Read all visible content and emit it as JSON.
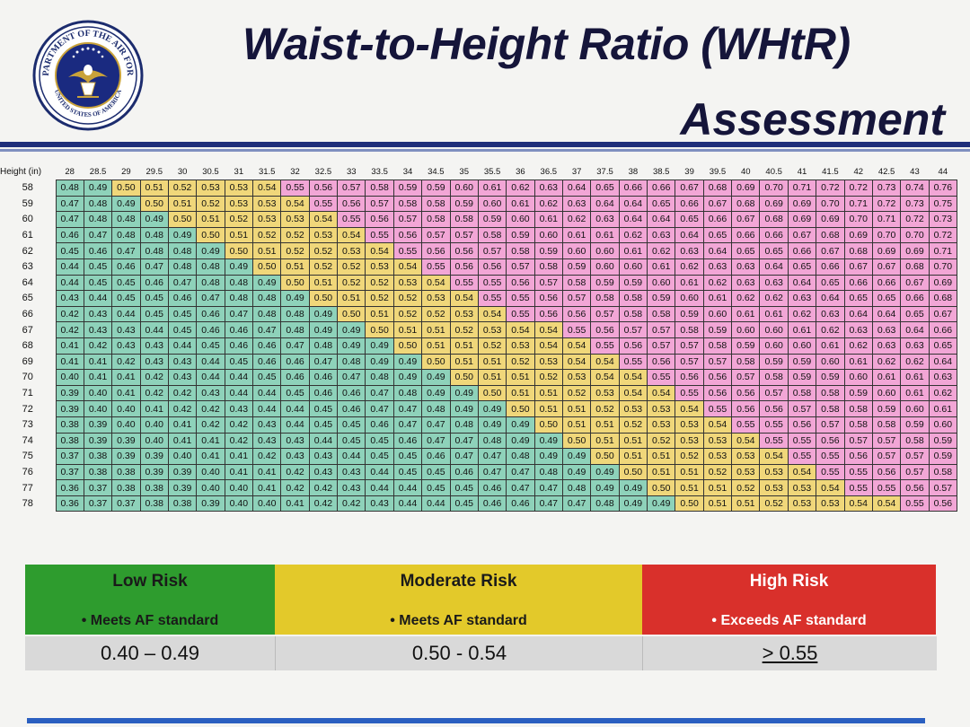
{
  "title": {
    "line1": "Waist-to-Height Ratio (WHtR)",
    "line2": "Assessment"
  },
  "seal": {
    "text_top": "DEPARTMENT OF THE AIR FORCE",
    "text_bottom": "UNITED STATES OF AMERICA",
    "colors": {
      "ring": "#1c2c6e",
      "inner": "#1a2a80",
      "gold": "#c9a23a"
    }
  },
  "table": {
    "corner_label": "Height (in)",
    "waist_columns": [
      "28",
      "28.5",
      "29",
      "29.5",
      "30",
      "30.5",
      "31",
      "31.5",
      "32",
      "32.5",
      "33",
      "33.5",
      "34",
      "34.5",
      "35",
      "35.5",
      "36",
      "36.5",
      "37",
      "37.5",
      "38",
      "38.5",
      "39",
      "39.5",
      "40",
      "40.5",
      "41",
      "41.5",
      "42",
      "42.5",
      "43",
      "44"
    ],
    "rows": [
      {
        "height": "58",
        "values": [
          "0.48",
          "0.49",
          "0.50",
          "0.51",
          "0.52",
          "0.53",
          "0.53",
          "0.54",
          "0.55",
          "0.56",
          "0.57",
          "0.58",
          "0.59",
          "0.59",
          "0.60",
          "0.61",
          "0.62",
          "0.63",
          "0.64",
          "0.65",
          "0.66",
          "0.66",
          "0.67",
          "0.68",
          "0.69",
          "0.70",
          "0.71",
          "0.72",
          "0.72",
          "0.73",
          "0.74",
          "0.76"
        ]
      },
      {
        "height": "59",
        "values": [
          "0.47",
          "0.48",
          "0.49",
          "0.50",
          "0.51",
          "0.52",
          "0.53",
          "0.53",
          "0.54",
          "0.55",
          "0.56",
          "0.57",
          "0.58",
          "0.58",
          "0.59",
          "0.60",
          "0.61",
          "0.62",
          "0.63",
          "0.64",
          "0.64",
          "0.65",
          "0.66",
          "0.67",
          "0.68",
          "0.69",
          "0.69",
          "0.70",
          "0.71",
          "0.72",
          "0.73",
          "0.75"
        ]
      },
      {
        "height": "60",
        "values": [
          "0.47",
          "0.48",
          "0.48",
          "0.49",
          "0.50",
          "0.51",
          "0.52",
          "0.53",
          "0.53",
          "0.54",
          "0.55",
          "0.56",
          "0.57",
          "0.58",
          "0.58",
          "0.59",
          "0.60",
          "0.61",
          "0.62",
          "0.63",
          "0.64",
          "0.64",
          "0.65",
          "0.66",
          "0.67",
          "0.68",
          "0.69",
          "0.69",
          "0.70",
          "0.71",
          "0.72",
          "0.73"
        ]
      },
      {
        "height": "61",
        "values": [
          "0.46",
          "0.47",
          "0.48",
          "0.48",
          "0.49",
          "0.50",
          "0.51",
          "0.52",
          "0.52",
          "0.53",
          "0.54",
          "0.55",
          "0.56",
          "0.57",
          "0.57",
          "0.58",
          "0.59",
          "0.60",
          "0.61",
          "0.61",
          "0.62",
          "0.63",
          "0.64",
          "0.65",
          "0.66",
          "0.66",
          "0.67",
          "0.68",
          "0.69",
          "0.70",
          "0.70",
          "0.72"
        ]
      },
      {
        "height": "62",
        "values": [
          "0.45",
          "0.46",
          "0.47",
          "0.48",
          "0.48",
          "0.49",
          "0.50",
          "0.51",
          "0.52",
          "0.52",
          "0.53",
          "0.54",
          "0.55",
          "0.56",
          "0.56",
          "0.57",
          "0.58",
          "0.59",
          "0.60",
          "0.60",
          "0.61",
          "0.62",
          "0.63",
          "0.64",
          "0.65",
          "0.65",
          "0.66",
          "0.67",
          "0.68",
          "0.69",
          "0.69",
          "0.71"
        ]
      },
      {
        "height": "63",
        "values": [
          "0.44",
          "0.45",
          "0.46",
          "0.47",
          "0.48",
          "0.48",
          "0.49",
          "0.50",
          "0.51",
          "0.52",
          "0.52",
          "0.53",
          "0.54",
          "0.55",
          "0.56",
          "0.56",
          "0.57",
          "0.58",
          "0.59",
          "0.60",
          "0.60",
          "0.61",
          "0.62",
          "0.63",
          "0.63",
          "0.64",
          "0.65",
          "0.66",
          "0.67",
          "0.67",
          "0.68",
          "0.70"
        ]
      },
      {
        "height": "64",
        "values": [
          "0.44",
          "0.45",
          "0.45",
          "0.46",
          "0.47",
          "0.48",
          "0.48",
          "0.49",
          "0.50",
          "0.51",
          "0.52",
          "0.52",
          "0.53",
          "0.54",
          "0.55",
          "0.55",
          "0.56",
          "0.57",
          "0.58",
          "0.59",
          "0.59",
          "0.60",
          "0.61",
          "0.62",
          "0.63",
          "0.63",
          "0.64",
          "0.65",
          "0.66",
          "0.66",
          "0.67",
          "0.69"
        ]
      },
      {
        "height": "65",
        "values": [
          "0.43",
          "0.44",
          "0.45",
          "0.45",
          "0.46",
          "0.47",
          "0.48",
          "0.48",
          "0.49",
          "0.50",
          "0.51",
          "0.52",
          "0.52",
          "0.53",
          "0.54",
          "0.55",
          "0.55",
          "0.56",
          "0.57",
          "0.58",
          "0.58",
          "0.59",
          "0.60",
          "0.61",
          "0.62",
          "0.62",
          "0.63",
          "0.64",
          "0.65",
          "0.65",
          "0.66",
          "0.68"
        ]
      },
      {
        "height": "66",
        "values": [
          "0.42",
          "0.43",
          "0.44",
          "0.45",
          "0.45",
          "0.46",
          "0.47",
          "0.48",
          "0.48",
          "0.49",
          "0.50",
          "0.51",
          "0.52",
          "0.52",
          "0.53",
          "0.54",
          "0.55",
          "0.56",
          "0.56",
          "0.57",
          "0.58",
          "0.58",
          "0.59",
          "0.60",
          "0.61",
          "0.61",
          "0.62",
          "0.63",
          "0.64",
          "0.64",
          "0.65",
          "0.67"
        ]
      },
      {
        "height": "67",
        "values": [
          "0.42",
          "0.43",
          "0.43",
          "0.44",
          "0.45",
          "0.46",
          "0.46",
          "0.47",
          "0.48",
          "0.49",
          "0.49",
          "0.50",
          "0.51",
          "0.51",
          "0.52",
          "0.53",
          "0.54",
          "0.54",
          "0.55",
          "0.56",
          "0.57",
          "0.57",
          "0.58",
          "0.59",
          "0.60",
          "0.60",
          "0.61",
          "0.62",
          "0.63",
          "0.63",
          "0.64",
          "0.66"
        ]
      },
      {
        "height": "68",
        "values": [
          "0.41",
          "0.42",
          "0.43",
          "0.43",
          "0.44",
          "0.45",
          "0.46",
          "0.46",
          "0.47",
          "0.48",
          "0.49",
          "0.49",
          "0.50",
          "0.51",
          "0.51",
          "0.52",
          "0.53",
          "0.54",
          "0.54",
          "0.55",
          "0.56",
          "0.57",
          "0.57",
          "0.58",
          "0.59",
          "0.60",
          "0.60",
          "0.61",
          "0.62",
          "0.63",
          "0.63",
          "0.65"
        ]
      },
      {
        "height": "69",
        "values": [
          "0.41",
          "0.41",
          "0.42",
          "0.43",
          "0.43",
          "0.44",
          "0.45",
          "0.46",
          "0.46",
          "0.47",
          "0.48",
          "0.49",
          "0.49",
          "0.50",
          "0.51",
          "0.51",
          "0.52",
          "0.53",
          "0.54",
          "0.54",
          "0.55",
          "0.56",
          "0.57",
          "0.57",
          "0.58",
          "0.59",
          "0.59",
          "0.60",
          "0.61",
          "0.62",
          "0.62",
          "0.64"
        ]
      },
      {
        "height": "70",
        "values": [
          "0.40",
          "0.41",
          "0.41",
          "0.42",
          "0.43",
          "0.44",
          "0.44",
          "0.45",
          "0.46",
          "0.46",
          "0.47",
          "0.48",
          "0.49",
          "0.49",
          "0.50",
          "0.51",
          "0.51",
          "0.52",
          "0.53",
          "0.54",
          "0.54",
          "0.55",
          "0.56",
          "0.56",
          "0.57",
          "0.58",
          "0.59",
          "0.59",
          "0.60",
          "0.61",
          "0.61",
          "0.63"
        ]
      },
      {
        "height": "71",
        "values": [
          "0.39",
          "0.40",
          "0.41",
          "0.42",
          "0.42",
          "0.43",
          "0.44",
          "0.44",
          "0.45",
          "0.46",
          "0.46",
          "0.47",
          "0.48",
          "0.49",
          "0.49",
          "0.50",
          "0.51",
          "0.51",
          "0.52",
          "0.53",
          "0.54",
          "0.54",
          "0.55",
          "0.56",
          "0.56",
          "0.57",
          "0.58",
          "0.58",
          "0.59",
          "0.60",
          "0.61",
          "0.62"
        ]
      },
      {
        "height": "72",
        "values": [
          "0.39",
          "0.40",
          "0.40",
          "0.41",
          "0.42",
          "0.42",
          "0.43",
          "0.44",
          "0.44",
          "0.45",
          "0.46",
          "0.47",
          "0.47",
          "0.48",
          "0.49",
          "0.49",
          "0.50",
          "0.51",
          "0.51",
          "0.52",
          "0.53",
          "0.53",
          "0.54",
          "0.55",
          "0.56",
          "0.56",
          "0.57",
          "0.58",
          "0.58",
          "0.59",
          "0.60",
          "0.61"
        ]
      },
      {
        "height": "73",
        "values": [
          "0.38",
          "0.39",
          "0.40",
          "0.40",
          "0.41",
          "0.42",
          "0.42",
          "0.43",
          "0.44",
          "0.45",
          "0.45",
          "0.46",
          "0.47",
          "0.47",
          "0.48",
          "0.49",
          "0.49",
          "0.50",
          "0.51",
          "0.51",
          "0.52",
          "0.53",
          "0.53",
          "0.54",
          "0.55",
          "0.55",
          "0.56",
          "0.57",
          "0.58",
          "0.58",
          "0.59",
          "0.60"
        ]
      },
      {
        "height": "74",
        "values": [
          "0.38",
          "0.39",
          "0.39",
          "0.40",
          "0.41",
          "0.41",
          "0.42",
          "0.43",
          "0.43",
          "0.44",
          "0.45",
          "0.45",
          "0.46",
          "0.47",
          "0.47",
          "0.48",
          "0.49",
          "0.49",
          "0.50",
          "0.51",
          "0.51",
          "0.52",
          "0.53",
          "0.53",
          "0.54",
          "0.55",
          "0.55",
          "0.56",
          "0.57",
          "0.57",
          "0.58",
          "0.59"
        ]
      },
      {
        "height": "75",
        "values": [
          "0.37",
          "0.38",
          "0.39",
          "0.39",
          "0.40",
          "0.41",
          "0.41",
          "0.42",
          "0.43",
          "0.43",
          "0.44",
          "0.45",
          "0.45",
          "0.46",
          "0.47",
          "0.47",
          "0.48",
          "0.49",
          "0.49",
          "0.50",
          "0.51",
          "0.51",
          "0.52",
          "0.53",
          "0.53",
          "0.54",
          "0.55",
          "0.55",
          "0.56",
          "0.57",
          "0.57",
          "0.59"
        ]
      },
      {
        "height": "76",
        "values": [
          "0.37",
          "0.38",
          "0.38",
          "0.39",
          "0.39",
          "0.40",
          "0.41",
          "0.41",
          "0.42",
          "0.43",
          "0.43",
          "0.44",
          "0.45",
          "0.45",
          "0.46",
          "0.47",
          "0.47",
          "0.48",
          "0.49",
          "0.49",
          "0.50",
          "0.51",
          "0.51",
          "0.52",
          "0.53",
          "0.53",
          "0.54",
          "0.55",
          "0.55",
          "0.56",
          "0.57",
          "0.58"
        ]
      },
      {
        "height": "77",
        "values": [
          "0.36",
          "0.37",
          "0.38",
          "0.38",
          "0.39",
          "0.40",
          "0.40",
          "0.41",
          "0.42",
          "0.42",
          "0.43",
          "0.44",
          "0.44",
          "0.45",
          "0.45",
          "0.46",
          "0.47",
          "0.47",
          "0.48",
          "0.49",
          "0.49",
          "0.50",
          "0.51",
          "0.51",
          "0.52",
          "0.53",
          "0.53",
          "0.54",
          "0.55",
          "0.55",
          "0.56",
          "0.57"
        ]
      },
      {
        "height": "78",
        "values": [
          "0.36",
          "0.37",
          "0.37",
          "0.38",
          "0.38",
          "0.39",
          "0.40",
          "0.40",
          "0.41",
          "0.42",
          "0.42",
          "0.43",
          "0.44",
          "0.44",
          "0.45",
          "0.46",
          "0.46",
          "0.47",
          "0.47",
          "0.48",
          "0.49",
          "0.49",
          "0.50",
          "0.51",
          "0.51",
          "0.52",
          "0.53",
          "0.53",
          "0.54",
          "0.54",
          "0.55",
          "0.56"
        ]
      }
    ]
  },
  "legend": [
    {
      "risk": "Low Risk",
      "standard": "Meets AF standard",
      "range": "0.40 – 0.49",
      "color": "#2e9c2e",
      "text_color": "#1a1a1a"
    },
    {
      "risk": "Moderate Risk",
      "standard": "Meets AF standard",
      "range": "0.50 - 0.54",
      "color": "#e3c92a",
      "text_color": "#1a1a1a"
    },
    {
      "risk": "High Risk",
      "standard": "Exceeds AF standard",
      "range": "> 0.55",
      "color": "#d9302b",
      "text_color": "#ffffff"
    }
  ],
  "colors": {
    "green_cell": "#8ed2ba",
    "yellow_cell": "#f0d77a",
    "pink_cell": "#f2a6d6",
    "title": "#15153a",
    "rule": "#1f2f7a"
  }
}
